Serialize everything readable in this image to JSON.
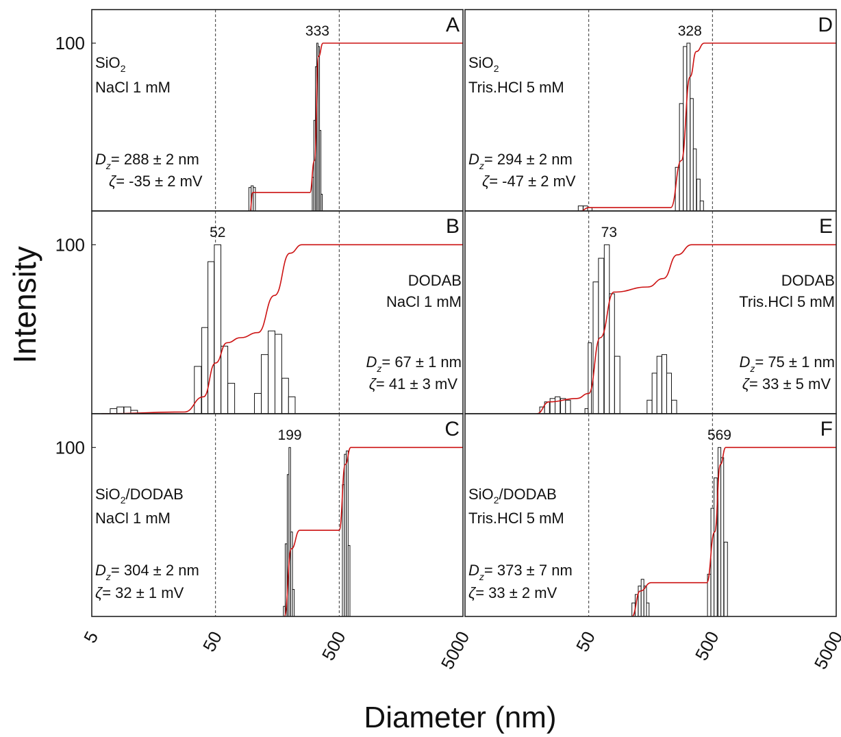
{
  "figure": {
    "y_axis_title": "Intensity",
    "x_axis_title": "Diameter (nm)",
    "x_tick_labels": [
      "5",
      "50",
      "500",
      "5000"
    ],
    "y_tick_label": "100"
  },
  "colors": {
    "cumulative_curve": "#cc1111",
    "bars": "#111111"
  },
  "chart_data": [
    {
      "panel": "A",
      "type": "bar",
      "x_scale": "log",
      "xlim": [
        5,
        5000
      ],
      "ylim": [
        0,
        120
      ],
      "peak_label": "333",
      "peak_diameter": 333,
      "sample_lines": [
        [
          "SiO",
          "2",
          ""
        ],
        [
          "NaCl 1 mM",
          "",
          ""
        ]
      ],
      "dz_value": "= 288 ± 2 nm",
      "zeta_value": "= -35 ± 2 mV",
      "bars": [
        {
          "d": 95,
          "v": 14
        },
        {
          "d": 99,
          "v": 15
        },
        {
          "d": 103,
          "v": 14
        },
        {
          "d": 307,
          "v": 20
        },
        {
          "d": 316,
          "v": 54
        },
        {
          "d": 325,
          "v": 86
        },
        {
          "d": 333,
          "v": 100
        },
        {
          "d": 342,
          "v": 98
        },
        {
          "d": 351,
          "v": 48
        },
        {
          "d": 360,
          "v": 10
        }
      ],
      "cumulative": [
        [
          95,
          0
        ],
        [
          100,
          11
        ],
        [
          290,
          11
        ],
        [
          315,
          30
        ],
        [
          340,
          92
        ],
        [
          370,
          100
        ],
        [
          5000,
          100
        ]
      ]
    },
    {
      "panel": "B",
      "type": "bar",
      "x_scale": "log",
      "xlim": [
        5,
        5000
      ],
      "ylim": [
        0,
        120
      ],
      "peak_label": "52",
      "peak_diameter": 52,
      "sample_lines": [
        [
          "DODAB",
          "",
          ""
        ],
        [
          "NaCl 1 mM",
          "",
          ""
        ]
      ],
      "dz_value": "= 67 ± 1 nm",
      "zeta_value": "= 41 ± 3 mV",
      "bars": [
        {
          "d": 7.5,
          "v": 3
        },
        {
          "d": 8.5,
          "v": 4
        },
        {
          "d": 9.7,
          "v": 4
        },
        {
          "d": 11,
          "v": 2
        },
        {
          "d": 36,
          "v": 28
        },
        {
          "d": 41,
          "v": 51
        },
        {
          "d": 46,
          "v": 90
        },
        {
          "d": 52,
          "v": 100
        },
        {
          "d": 59,
          "v": 40
        },
        {
          "d": 67,
          "v": 18
        },
        {
          "d": 110,
          "v": 12
        },
        {
          "d": 125,
          "v": 35
        },
        {
          "d": 142,
          "v": 49
        },
        {
          "d": 161,
          "v": 47
        },
        {
          "d": 183,
          "v": 21
        },
        {
          "d": 207,
          "v": 10
        }
      ],
      "cumulative": [
        [
          6,
          0
        ],
        [
          28,
          1
        ],
        [
          40,
          10
        ],
        [
          50,
          30
        ],
        [
          62,
          42
        ],
        [
          80,
          45
        ],
        [
          110,
          48
        ],
        [
          150,
          70
        ],
        [
          200,
          95
        ],
        [
          250,
          100
        ],
        [
          5000,
          100
        ]
      ]
    },
    {
      "panel": "C",
      "type": "bar",
      "x_scale": "log",
      "xlim": [
        5,
        5000
      ],
      "ylim": [
        0,
        120
      ],
      "peak_label": "199",
      "peak_diameter": 199,
      "sample_lines": [
        [
          "SiO",
          "2",
          "/DODAB"
        ],
        [
          "NaCl 1 mM",
          "",
          ""
        ]
      ],
      "dz_value": "= 304 ± 2 nm",
      "zeta_value": "= 32 ± 1 mV",
      "bars": [
        {
          "d": 180,
          "v": 6
        },
        {
          "d": 186,
          "v": 43
        },
        {
          "d": 193,
          "v": 84
        },
        {
          "d": 199,
          "v": 100
        },
        {
          "d": 206,
          "v": 50
        },
        {
          "d": 213,
          "v": 16
        },
        {
          "d": 540,
          "v": 78
        },
        {
          "d": 560,
          "v": 96
        },
        {
          "d": 580,
          "v": 98
        },
        {
          "d": 600,
          "v": 42
        }
      ],
      "cumulative": [
        [
          180,
          0
        ],
        [
          205,
          40
        ],
        [
          240,
          51
        ],
        [
          500,
          51
        ],
        [
          560,
          90
        ],
        [
          620,
          100
        ],
        [
          5000,
          100
        ]
      ]
    },
    {
      "panel": "D",
      "type": "bar",
      "x_scale": "log",
      "xlim": [
        5,
        5000
      ],
      "ylim": [
        0,
        120
      ],
      "peak_label": "328",
      "peak_diameter": 328,
      "sample_lines": [
        [
          "SiO",
          "2",
          ""
        ],
        [
          "Tris.HCl 5 mM",
          "",
          ""
        ]
      ],
      "dz_value": "= 294 ± 2 nm",
      "zeta_value": "= -47 ± 2 mV",
      "bars": [
        {
          "d": 43,
          "v": 3
        },
        {
          "d": 47,
          "v": 3
        },
        {
          "d": 51,
          "v": 2
        },
        {
          "d": 260,
          "v": 26
        },
        {
          "d": 280,
          "v": 64
        },
        {
          "d": 300,
          "v": 98
        },
        {
          "d": 320,
          "v": 100
        },
        {
          "d": 340,
          "v": 67
        },
        {
          "d": 360,
          "v": 37
        },
        {
          "d": 385,
          "v": 19
        },
        {
          "d": 410,
          "v": 6
        }
      ],
      "cumulative": [
        [
          43,
          0
        ],
        [
          50,
          2
        ],
        [
          230,
          2
        ],
        [
          280,
          30
        ],
        [
          330,
          80
        ],
        [
          370,
          95
        ],
        [
          430,
          100
        ],
        [
          5000,
          100
        ]
      ]
    },
    {
      "panel": "E",
      "type": "bar",
      "x_scale": "log",
      "xlim": [
        5,
        5000
      ],
      "ylim": [
        0,
        120
      ],
      "peak_label": "73",
      "peak_diameter": 73,
      "sample_lines": [
        [
          "DODAB",
          "",
          ""
        ],
        [
          "Tris.HCl 5 mM",
          "",
          ""
        ]
      ],
      "dz_value": "= 75 ± 1 nm",
      "zeta_value": "= 33 ± 5 mV",
      "bars": [
        {
          "d": 21,
          "v": 4
        },
        {
          "d": 23,
          "v": 7
        },
        {
          "d": 25.5,
          "v": 9
        },
        {
          "d": 28,
          "v": 10
        },
        {
          "d": 31,
          "v": 9
        },
        {
          "d": 34,
          "v": 8
        },
        {
          "d": 48,
          "v": 3
        },
        {
          "d": 51,
          "v": 42
        },
        {
          "d": 57,
          "v": 78
        },
        {
          "d": 63,
          "v": 92
        },
        {
          "d": 70,
          "v": 100
        },
        {
          "d": 77,
          "v": 71
        },
        {
          "d": 85,
          "v": 34
        },
        {
          "d": 155,
          "v": 8
        },
        {
          "d": 170,
          "v": 24
        },
        {
          "d": 186,
          "v": 34
        },
        {
          "d": 204,
          "v": 35
        },
        {
          "d": 223,
          "v": 24
        },
        {
          "d": 245,
          "v": 8
        }
      ],
      "cumulative": [
        [
          19,
          0
        ],
        [
          24,
          7
        ],
        [
          40,
          9
        ],
        [
          50,
          12
        ],
        [
          62,
          45
        ],
        [
          80,
          72
        ],
        [
          150,
          75
        ],
        [
          200,
          80
        ],
        [
          260,
          94
        ],
        [
          340,
          100
        ],
        [
          5000,
          100
        ]
      ]
    },
    {
      "panel": "F",
      "type": "bar",
      "x_scale": "log",
      "xlim": [
        5,
        5000
      ],
      "ylim": [
        0,
        120
      ],
      "peak_label": "569",
      "peak_diameter": 569,
      "sample_lines": [
        [
          "SiO",
          "2",
          "/DODAB"
        ],
        [
          "Tris.HCl 5 mM",
          "",
          ""
        ]
      ],
      "dz_value": "= 373 ± 7 nm",
      "zeta_value": "= 33 ± 2 mV",
      "bars": [
        {
          "d": 115,
          "v": 8
        },
        {
          "d": 122,
          "v": 13
        },
        {
          "d": 129,
          "v": 18
        },
        {
          "d": 136,
          "v": 22
        },
        {
          "d": 143,
          "v": 18
        },
        {
          "d": 150,
          "v": 8
        },
        {
          "d": 470,
          "v": 25
        },
        {
          "d": 500,
          "v": 64
        },
        {
          "d": 530,
          "v": 82
        },
        {
          "d": 569,
          "v": 100
        },
        {
          "d": 600,
          "v": 94
        },
        {
          "d": 640,
          "v": 44
        }
      ],
      "cumulative": [
        [
          112,
          0
        ],
        [
          130,
          15
        ],
        [
          160,
          20
        ],
        [
          450,
          20
        ],
        [
          520,
          50
        ],
        [
          580,
          90
        ],
        [
          640,
          100
        ],
        [
          5000,
          100
        ]
      ]
    }
  ]
}
